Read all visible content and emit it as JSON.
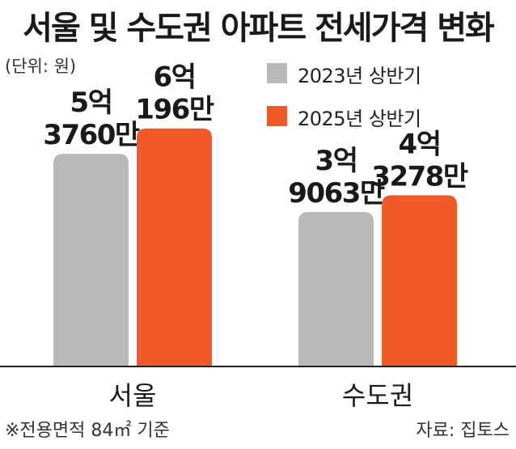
{
  "title": "서울 및 수도권 아파트 전세가격 변화",
  "unit_note": "(단위: 원)",
  "footnote": "※전용면적 84㎡ 기준",
  "source": "자료: 집토스",
  "legend": [
    {
      "label": "2023년 상반기",
      "color": "#b9b9bb"
    },
    {
      "label": "2025년 상반기",
      "color": "#f05a28"
    }
  ],
  "chart_data": {
    "type": "bar",
    "categories": [
      "서울",
      "수도권"
    ],
    "series": [
      {
        "name": "2023년 상반기",
        "color": "#b9b9bb",
        "values": [
          537600000,
          390630000
        ],
        "labels": [
          [
            "5억",
            "3760만"
          ],
          [
            "3억",
            "9063만"
          ]
        ]
      },
      {
        "name": "2025년 상반기",
        "color": "#f05a28",
        "values": [
          601960000,
          432780000
        ],
        "labels": [
          [
            "6억",
            "196만"
          ],
          [
            "4억",
            "3278만"
          ]
        ]
      }
    ],
    "ylim": [
      0,
      900000000
    ],
    "grid": false
  }
}
